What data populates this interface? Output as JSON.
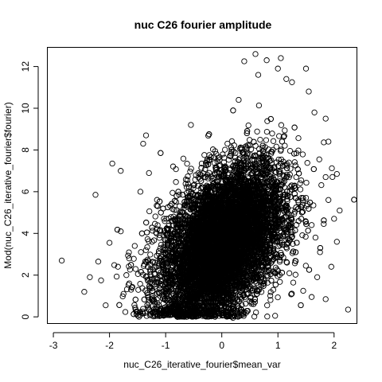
{
  "chart_data": {
    "type": "scatter",
    "title": "nuc C26 fourier amplitude",
    "xlabel": "nuc_C26_iterative_fourier$mean_var",
    "ylabel": "Mod(nuc_C26_iterative_fourier$fourier)",
    "xlim": [
      -3.1,
      2.4
    ],
    "ylim": [
      -0.3,
      12.9
    ],
    "x_ticks": [
      -3,
      -2,
      -1,
      0,
      1,
      2
    ],
    "y_ticks": [
      0,
      2,
      4,
      6,
      8,
      10,
      12
    ],
    "grid": false,
    "legend": "none",
    "marker": "open-circle",
    "color": "#000000",
    "point_count_estimate": 20000,
    "dense_region": {
      "x_center": 0.0,
      "y_center": 3.5,
      "x_spread": 0.55,
      "y_spread": 1.9,
      "correlation": 0.45
    },
    "outliers": [
      {
        "x": -2.85,
        "y": 2.7
      },
      {
        "x": -2.45,
        "y": 1.2
      },
      {
        "x": -2.35,
        "y": 1.9
      },
      {
        "x": -2.25,
        "y": 5.85
      },
      {
        "x": -2.2,
        "y": 2.65
      },
      {
        "x": -2.15,
        "y": 1.75
      },
      {
        "x": -2.0,
        "y": 3.55
      },
      {
        "x": -1.95,
        "y": 7.35
      },
      {
        "x": -1.85,
        "y": 2.4
      },
      {
        "x": -1.8,
        "y": 4.1
      },
      {
        "x": -1.8,
        "y": 7.0
      },
      {
        "x": -1.75,
        "y": 1.1
      },
      {
        "x": -1.7,
        "y": 2.0
      },
      {
        "x": -1.65,
        "y": 2.8
      },
      {
        "x": -1.55,
        "y": 3.4
      },
      {
        "x": -1.45,
        "y": 6.0
      },
      {
        "x": -1.4,
        "y": 8.3
      },
      {
        "x": -1.35,
        "y": 8.7
      },
      {
        "x": -1.3,
        "y": 0.8
      },
      {
        "x": -1.2,
        "y": 0.25
      },
      {
        "x": -0.55,
        "y": 9.2
      },
      {
        "x": 0.3,
        "y": 10.4
      },
      {
        "x": 0.4,
        "y": 12.25
      },
      {
        "x": 0.6,
        "y": 12.6
      },
      {
        "x": 0.65,
        "y": 11.6
      },
      {
        "x": 0.8,
        "y": 12.3
      },
      {
        "x": 1.0,
        "y": 11.9
      },
      {
        "x": 1.15,
        "y": 11.4
      },
      {
        "x": 1.25,
        "y": 11.25
      },
      {
        "x": 1.5,
        "y": 11.9
      },
      {
        "x": 1.55,
        "y": 10.8
      },
      {
        "x": 1.65,
        "y": 9.8
      },
      {
        "x": 1.85,
        "y": 9.5
      },
      {
        "x": 1.9,
        "y": 8.4
      },
      {
        "x": 1.85,
        "y": 6.7
      },
      {
        "x": 1.9,
        "y": 5.6
      },
      {
        "x": 2.0,
        "y": 4.7
      },
      {
        "x": 2.05,
        "y": 6.85
      },
      {
        "x": 2.1,
        "y": 5.1
      },
      {
        "x": 2.05,
        "y": 3.6
      },
      {
        "x": 1.95,
        "y": 2.4
      },
      {
        "x": 1.85,
        "y": 0.85
      },
      {
        "x": 1.6,
        "y": 0.95
      },
      {
        "x": 2.25,
        "y": 0.35
      },
      {
        "x": 1.7,
        "y": 1.9
      },
      {
        "x": 1.75,
        "y": 3.1
      },
      {
        "x": 1.6,
        "y": 4.4
      },
      {
        "x": 1.45,
        "y": 1.25
      },
      {
        "x": -0.95,
        "y": 0.1
      },
      {
        "x": 0.2,
        "y": -0.05
      },
      {
        "x": 0.95,
        "y": 0.05
      }
    ]
  }
}
